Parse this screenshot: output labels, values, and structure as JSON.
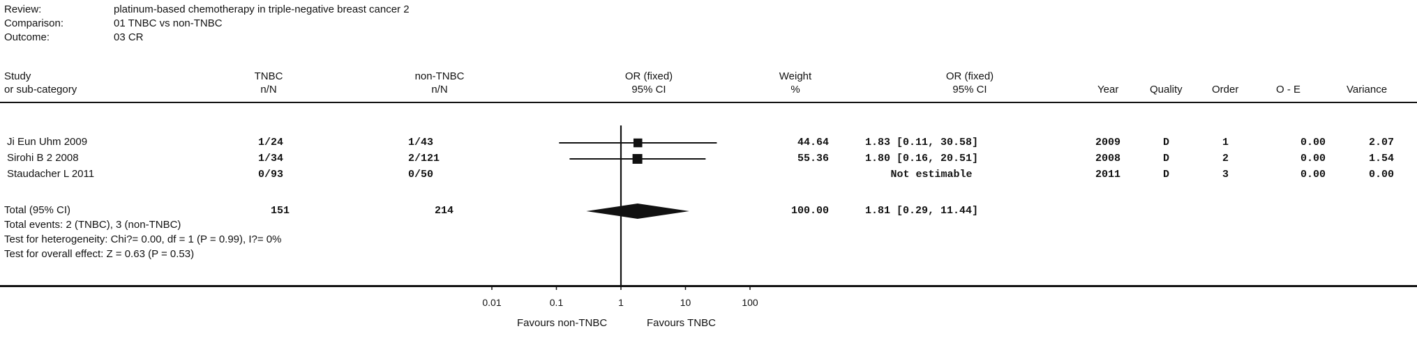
{
  "header": {
    "review_label": "Review:",
    "review_value": "platinum-based chemotherapy in triple-negative breast cancer 2",
    "comparison_label": "Comparison:",
    "comparison_value": "01 TNBC vs non-TNBC",
    "outcome_label": "Outcome:",
    "outcome_value": "03 CR"
  },
  "columns": {
    "study_1": "Study",
    "study_2": "or sub-category",
    "tnbc_1": "TNBC",
    "tnbc_2": "n/N",
    "nontnbc_1": "non-TNBC",
    "nontnbc_2": "n/N",
    "orplot_1": "OR (fixed)",
    "orplot_2": "95% CI",
    "weight_1": "Weight",
    "weight_2": "%",
    "ortext_1": "OR (fixed)",
    "ortext_2": "95% CI",
    "year": "Year",
    "quality": "Quality",
    "order": "Order",
    "oe": "O - E",
    "variance": "Variance"
  },
  "rows": [
    {
      "study": "Ji Eun Uhm 2009",
      "tnbc": "1/24",
      "nontnbc": "1/43",
      "weight": "44.64",
      "or_text": "1.83 [0.11, 30.58]",
      "year": "2009",
      "quality": "D",
      "order": "1",
      "oe": "0.00",
      "variance": "2.07"
    },
    {
      "study": "Sirohi B 2 2008",
      "tnbc": "1/34",
      "nontnbc": "2/121",
      "weight": "55.36",
      "or_text": "1.80 [0.16, 20.51]",
      "year": "2008",
      "quality": "D",
      "order": "2",
      "oe": "0.00",
      "variance": "1.54"
    },
    {
      "study": "Staudacher L 2011",
      "tnbc": "0/93",
      "nontnbc": "0/50",
      "weight": "",
      "or_text": "Not estimable",
      "year": "2011",
      "quality": "D",
      "order": "3",
      "oe": "0.00",
      "variance": "0.00"
    }
  ],
  "total": {
    "label": "Total (95% CI)",
    "tnbc": "151",
    "nontnbc": "214",
    "weight": "100.00",
    "or_text": "1.81 [0.29, 11.44]",
    "events": "Total events: 2 (TNBC), 3 (non-TNBC)",
    "heterogeneity": "Test for heterogeneity: Chi?= 0.00, df = 1 (P = 0.99), I?= 0%",
    "overall": "Test for overall effect: Z = 0.63 (P = 0.53)"
  },
  "axis": {
    "ticks": [
      "0.01",
      "0.1",
      "1",
      "10",
      "100"
    ],
    "favours_left": "Favours non-TNBC",
    "favours_right": "Favours TNBC"
  },
  "chart_data": {
    "type": "scatter",
    "x_scale": "log",
    "xlim": [
      0.01,
      100
    ],
    "reference_line": 1,
    "series": [
      {
        "study": "Ji Eun Uhm 2009",
        "or": 1.83,
        "ci": [
          0.11,
          30.58
        ],
        "weight": 44.64
      },
      {
        "study": "Sirohi B 2 2008",
        "or": 1.8,
        "ci": [
          0.16,
          20.51
        ],
        "weight": 55.36
      },
      {
        "study": "Staudacher L 2011",
        "or": null,
        "ci": null,
        "weight": null
      }
    ],
    "pooled": {
      "or": 1.81,
      "ci": [
        0.29,
        11.44
      ]
    }
  }
}
